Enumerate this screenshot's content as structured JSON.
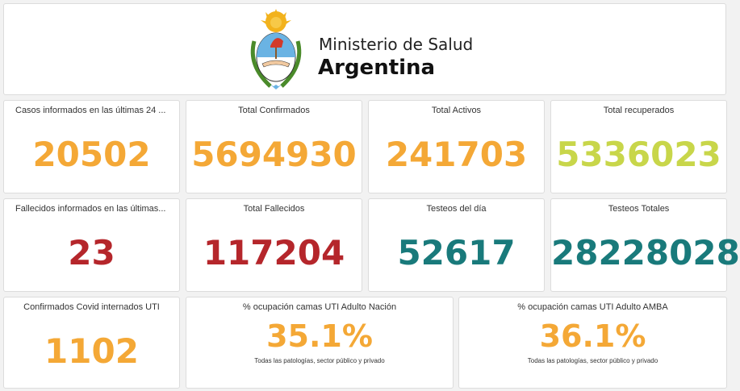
{
  "header": {
    "line1": "Ministerio de Salud",
    "line2": "Argentina",
    "logo_icon": "national-coat-of-arms-icon"
  },
  "colors": {
    "orange": "#f4a836",
    "lime": "#c8d64a",
    "red": "#b5262b",
    "teal": "#197a7b"
  },
  "row1": [
    {
      "title": "Casos informados en las últimas 24 ...",
      "value": "20502"
    },
    {
      "title": "Total Confirmados",
      "value": "5694930"
    },
    {
      "title": "Total Activos",
      "value": "241703"
    },
    {
      "title": "Total recuperados",
      "value": "5336023"
    }
  ],
  "row2": [
    {
      "title": "Fallecidos informados en las últimas...",
      "value": "23"
    },
    {
      "title": "Total Fallecidos",
      "value": "117204"
    },
    {
      "title": "Testeos del día",
      "value": "52617"
    },
    {
      "title": "Testeos Totales",
      "value": "28228028"
    }
  ],
  "row3": [
    {
      "title": "Confirmados Covid internados UTI",
      "value": "1102"
    },
    {
      "title": "% ocupación camas UTI Adulto Nación",
      "value": "35.1%",
      "subtitle": "Todas las patologías, sector público y privado"
    },
    {
      "title": "% ocupación camas UTI Adulto AMBA",
      "value": "36.1%",
      "subtitle": "Todas las patologías, sector público y privado"
    }
  ]
}
